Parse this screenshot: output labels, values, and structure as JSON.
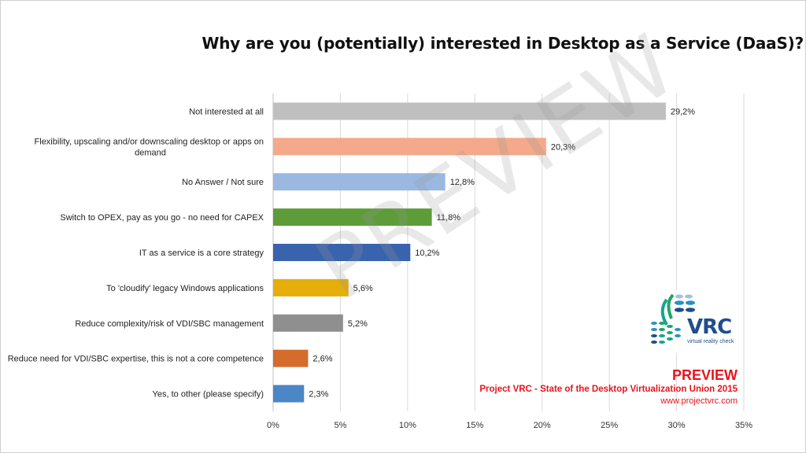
{
  "chart_data": {
    "type": "bar",
    "orientation": "horizontal",
    "title": "Why are you (potentially) interested in Desktop as a Service (DaaS)?",
    "categories": [
      "Not interested at all",
      "Flexibility, upscaling and/or downscaling desktop or apps on demand",
      "No Answer / Not sure",
      "Switch to OPEX, pay as you go - no need for CAPEX",
      "IT as a service is a core strategy",
      "To 'cloudify' legacy Windows applications",
      "Reduce complexity/risk of VDI/SBC management",
      "Reduce need for VDI/SBC expertise, this is not a core competence",
      "Yes, to other (please specify)"
    ],
    "category_lines": [
      [
        "Not interested at all"
      ],
      [
        "Flexibility, upscaling and/or downscaling desktop or apps on",
        "demand"
      ],
      [
        "No Answer / Not sure"
      ],
      [
        "Switch to OPEX, pay as you go - no need for CAPEX"
      ],
      [
        "IT as a service is a core strategy"
      ],
      [
        "To 'cloudify' legacy Windows applications"
      ],
      [
        "Reduce complexity/risk of VDI/SBC management"
      ],
      [
        "Reduce need for VDI/SBC expertise, this is not a core competence"
      ],
      [
        "Yes, to other (please specify)"
      ]
    ],
    "values": [
      29.2,
      20.3,
      12.8,
      11.8,
      10.2,
      5.6,
      5.2,
      2.6,
      2.3
    ],
    "value_labels": [
      "29,2%",
      "20,3%",
      "12,8%",
      "11,8%",
      "10,2%",
      "5,6%",
      "5,2%",
      "2,6%",
      "2,3%"
    ],
    "colors": [
      "#bfbfbf",
      "#f4a98a",
      "#9ab8e0",
      "#5e9c3a",
      "#3a63ad",
      "#e5ae0a",
      "#8f8f8f",
      "#d46c2c",
      "#4b86c5"
    ],
    "xlim": [
      0,
      35
    ],
    "xticks": [
      0,
      5,
      10,
      15,
      20,
      25,
      30,
      35
    ],
    "xtick_labels": [
      "0%",
      "5%",
      "10%",
      "15%",
      "20%",
      "25%",
      "30%",
      "35%"
    ],
    "grid": true
  },
  "watermark": "PREVIEW",
  "logo": {
    "text": "VRC",
    "subtitle": "virtual reality check"
  },
  "footer": {
    "title": "PREVIEW",
    "line": "Project VRC - State of the Desktop Virtualization Union 2015",
    "url": "www.projectvrc.com"
  }
}
